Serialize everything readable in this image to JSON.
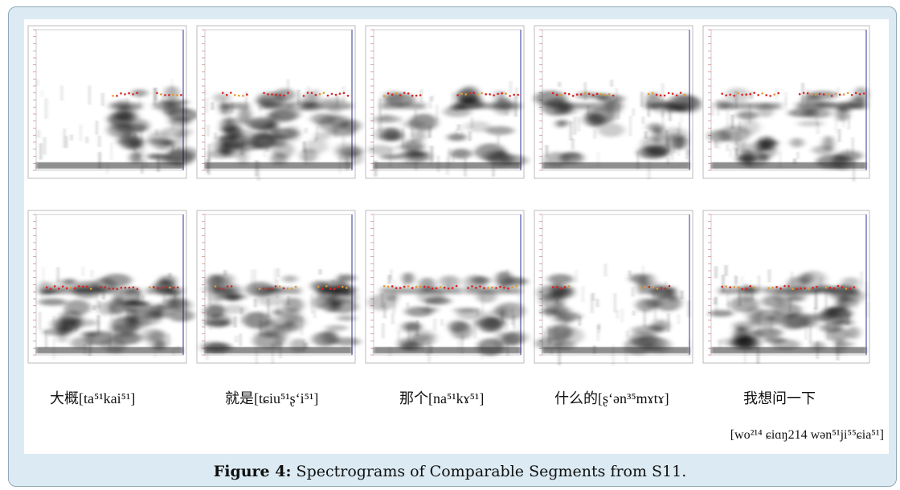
{
  "figure": {
    "labels": [
      "大概[ta⁵¹kai⁵¹]",
      "就是[tɕiu⁵¹ʂ‘i⁵¹]",
      "那个[na⁵¹kɤ⁵¹]",
      "什么的[ʂ‘ən³⁵mɤtɤ]",
      "我想问一下"
    ],
    "transcription": "[wo²¹⁴ ɕiɑŋ214 wən⁵¹ji⁵⁵ɕia⁵¹]",
    "caption_label": "Figure 4:",
    "caption_text": "Spectrograms of Comparable Segments from S11."
  }
}
